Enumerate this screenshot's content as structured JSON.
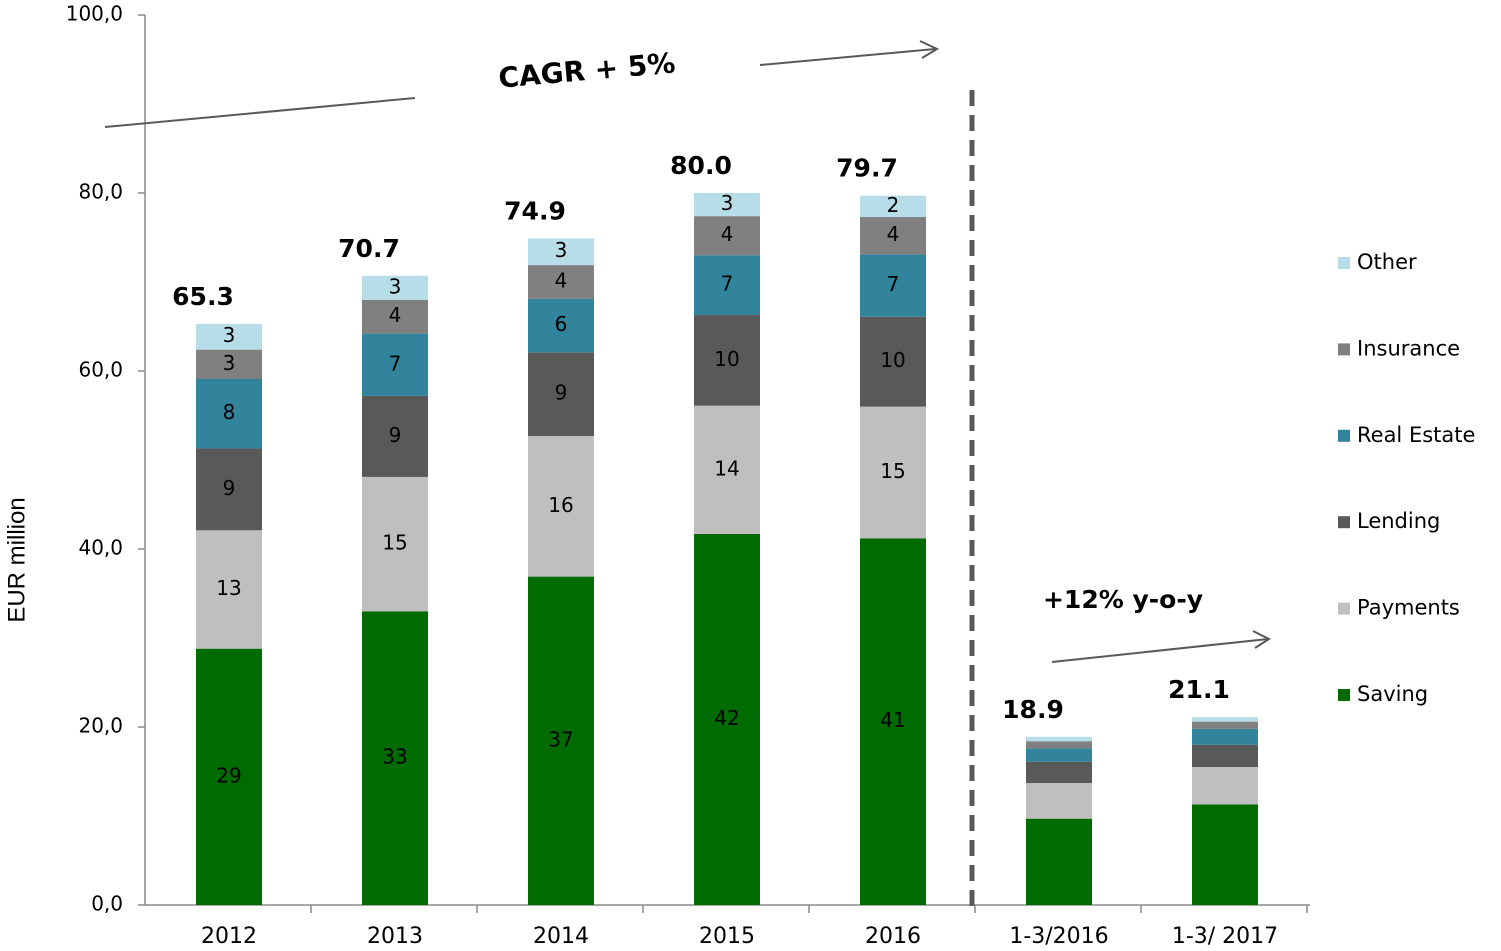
{
  "chart_data": {
    "type": "stacked_bar",
    "y_label": "EUR million",
    "categories": [
      "2012",
      "2013",
      "2014",
      "2015",
      "2016",
      "1-3/2016",
      "1-3/ 2017"
    ],
    "series": [
      {
        "name": "Saving",
        "color": "#006b00",
        "values": [
          28.8,
          33.0,
          36.9,
          41.7,
          41.2,
          9.7,
          11.3
        ],
        "value_labels": [
          "29",
          "33",
          "37",
          "42",
          "41",
          null,
          null
        ]
      },
      {
        "name": "Payments",
        "color": "#bfbfbf",
        "values": [
          13.3,
          15.1,
          15.8,
          14.4,
          14.8,
          4.0,
          4.2
        ],
        "value_labels": [
          "13",
          "15",
          "16",
          "14",
          "15",
          null,
          null
        ]
      },
      {
        "name": "Lending",
        "color": "#595959",
        "values": [
          9.2,
          9.1,
          9.4,
          10.2,
          10.1,
          2.4,
          2.5
        ],
        "value_labels": [
          "9",
          "9",
          "9",
          "10",
          "10",
          null,
          null
        ]
      },
      {
        "name": "Real Estate",
        "color": "#31849b",
        "values": [
          7.8,
          7.0,
          6.0,
          6.7,
          7.0,
          1.5,
          1.8
        ],
        "value_labels": [
          "8",
          "7",
          "6",
          "7",
          "7",
          null,
          null
        ]
      },
      {
        "name": "Insurance",
        "color": "#808080",
        "values": [
          3.3,
          3.8,
          3.8,
          4.4,
          4.2,
          0.8,
          0.8
        ],
        "value_labels": [
          "3",
          "4",
          "4",
          "4",
          "4",
          null,
          null
        ]
      },
      {
        "name": "Other",
        "color": "#b7dee8",
        "values": [
          2.9,
          2.7,
          3.0,
          2.6,
          2.4,
          0.5,
          0.5
        ],
        "value_labels": [
          "3",
          "3",
          "3",
          "3",
          "2",
          null,
          null
        ]
      }
    ],
    "totals": [
      65.3,
      70.7,
      74.9,
      80.0,
      79.7,
      18.9,
      21.1
    ],
    "total_labels": [
      "65.3",
      "70.7",
      "74.9",
      "80.0",
      "79.7",
      "18.9",
      "21.1"
    ],
    "ylim": [
      0,
      100
    ],
    "yticks": [
      {
        "value": 0,
        "label": "0,0"
      },
      {
        "value": 20,
        "label": "20,0"
      },
      {
        "value": 40,
        "label": "40,0"
      },
      {
        "value": 60,
        "label": "60,0"
      },
      {
        "value": 80,
        "label": "80,0"
      },
      {
        "value": 100,
        "label": "100,0"
      }
    ],
    "annotations": [
      "CAGR + 5%",
      "+12% y-o-y"
    ],
    "legend": "right"
  }
}
